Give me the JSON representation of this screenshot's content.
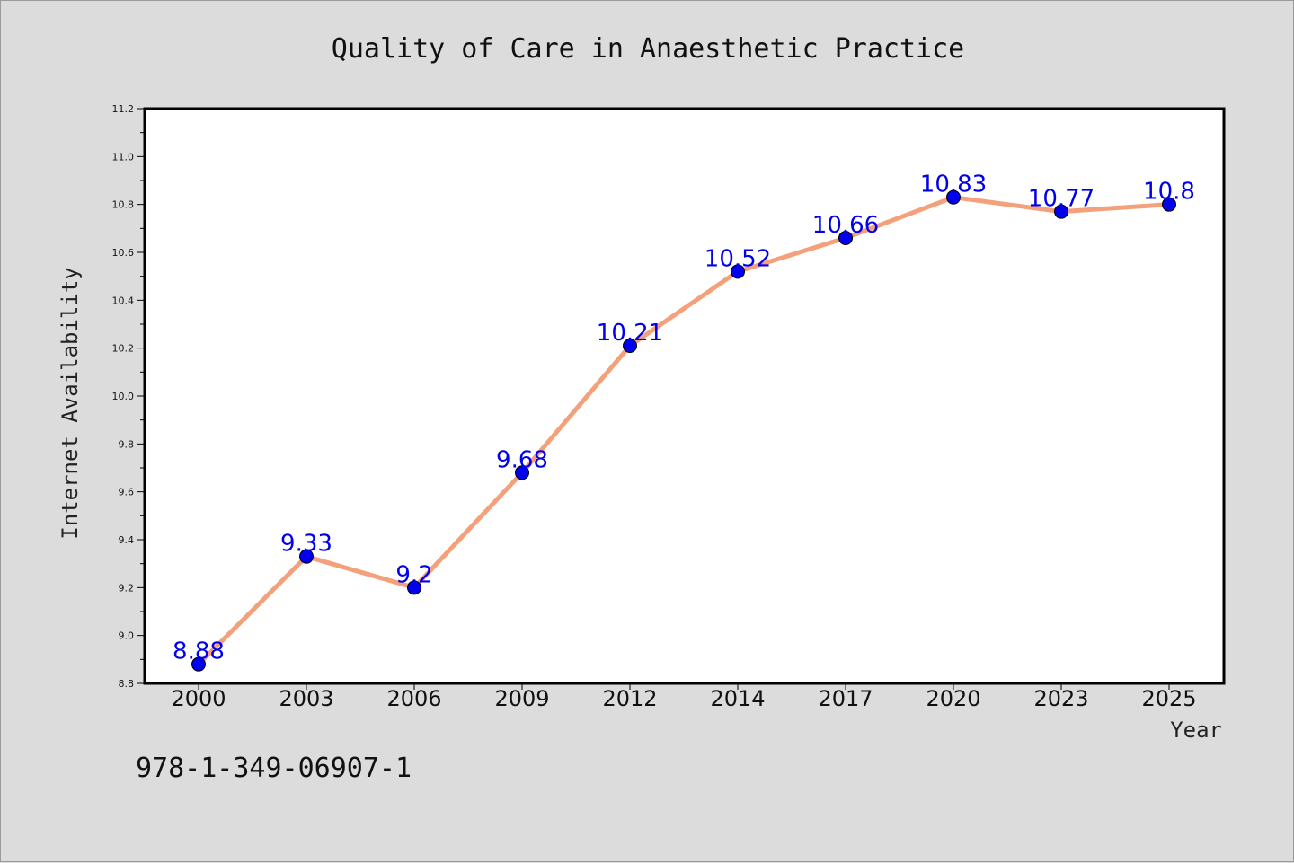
{
  "chart_data": {
    "type": "line",
    "title": "Quality of Care in Anaesthetic Practice",
    "xlabel": "Year",
    "ylabel": "Internet Availability",
    "categories": [
      "2000",
      "2003",
      "2006",
      "2009",
      "2012",
      "2014",
      "2017",
      "2020",
      "2023",
      "2025"
    ],
    "values": [
      8.88,
      9.33,
      9.2,
      9.68,
      10.21,
      10.52,
      10.66,
      10.83,
      10.77,
      10.8
    ],
    "data_labels": [
      "8.88",
      "9.33",
      "9.2",
      "9.68",
      "10.21",
      "10.52",
      "10.66",
      "10.83",
      "10.77",
      "10.8"
    ],
    "ylim": [
      8.8,
      11.2
    ],
    "yticks": [
      "8.8",
      "9.0",
      "9.2",
      "9.4",
      "9.6",
      "9.8",
      "10.0",
      "10.2",
      "10.4",
      "10.6",
      "10.8",
      "11.0",
      "11.2"
    ],
    "grid": false,
    "legend": "none",
    "colors": {
      "line": "#f4a07a",
      "marker": "#0000ee",
      "data_label": "#0000ee",
      "background": "#dcdcdc",
      "plot_area": "#ffffff"
    }
  },
  "caption": "978-1-349-06907-1"
}
